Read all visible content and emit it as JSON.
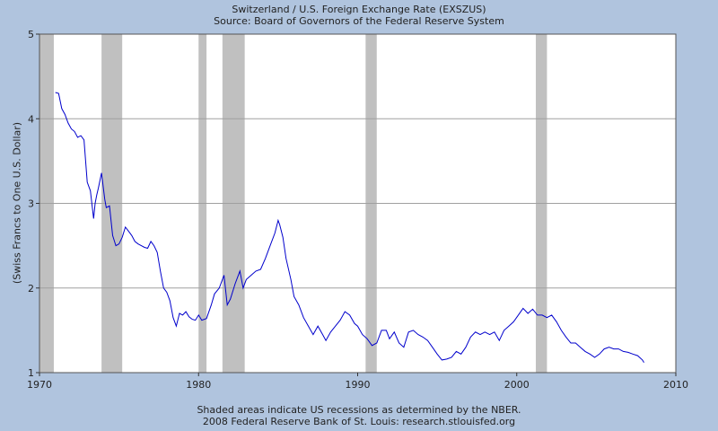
{
  "chart_data": {
    "type": "line",
    "title": "Switzerland / U.S. Foreign Exchange Rate (EXSZUS)",
    "subtitle": "Source: Board of Governors of the Federal Reserve System",
    "xlabel": "",
    "ylabel": "(Swiss Francs to One U.S. Dollar)",
    "xlim": [
      1970,
      2010
    ],
    "ylim": [
      1,
      5
    ],
    "x_ticks": [
      1970,
      1980,
      1990,
      2000,
      2010
    ],
    "y_ticks": [
      1,
      2,
      3,
      4,
      5
    ],
    "grid": "horizontal",
    "line_color": "#0000cc",
    "plot_background": "#ffffff",
    "recession_color": "#c0c0c0",
    "recessions": [
      [
        1969.9,
        1970.9
      ],
      [
        1973.9,
        1975.2
      ],
      [
        1980.0,
        1980.5
      ],
      [
        1981.5,
        1982.9
      ],
      [
        1990.5,
        1991.2
      ],
      [
        2001.2,
        2001.9
      ]
    ],
    "series": [
      {
        "x": [
          1971.0,
          1971.2,
          1971.4,
          1971.6,
          1971.8,
          1972.0,
          1972.2,
          1972.4,
          1972.6,
          1972.8,
          1973.0,
          1973.2,
          1973.4,
          1973.5,
          1973.6,
          1973.7,
          1973.9,
          1974.1,
          1974.2,
          1974.4,
          1974.6,
          1974.8,
          1975.0,
          1975.2,
          1975.4,
          1975.6,
          1975.8,
          1976.0,
          1976.2,
          1976.4,
          1976.6,
          1976.8,
          1977.0,
          1977.2,
          1977.4,
          1977.6,
          1977.8,
          1978.0,
          1978.2,
          1978.4,
          1978.6,
          1978.8,
          1979.0,
          1979.2,
          1979.4,
          1979.6,
          1979.8,
          1980.0,
          1980.2,
          1980.5,
          1980.8,
          1981.0,
          1981.3,
          1981.6,
          1981.8,
          1982.0,
          1982.3,
          1982.6,
          1982.8,
          1983.0,
          1983.3,
          1983.6,
          1983.9,
          1984.2,
          1984.5,
          1984.8,
          1985.0,
          1985.1,
          1985.3,
          1985.5,
          1985.8,
          1986.0,
          1986.3,
          1986.6,
          1986.9,
          1987.2,
          1987.5,
          1987.8,
          1988.0,
          1988.3,
          1988.6,
          1988.9,
          1989.2,
          1989.5,
          1989.8,
          1990.0,
          1990.3,
          1990.6,
          1990.9,
          1991.2,
          1991.5,
          1991.8,
          1992.0,
          1992.3,
          1992.6,
          1992.9,
          1993.2,
          1993.5,
          1993.8,
          1994.1,
          1994.4,
          1994.7,
          1995.0,
          1995.3,
          1995.6,
          1995.9,
          1996.2,
          1996.5,
          1996.8,
          1997.1,
          1997.4,
          1997.7,
          1998.0,
          1998.3,
          1998.6,
          1998.9,
          1999.2,
          1999.5,
          1999.8,
          2000.1,
          2000.4,
          2000.7,
          2001.0,
          2001.3,
          2001.6,
          2001.9,
          2002.2,
          2002.5,
          2002.8,
          2003.1,
          2003.4,
          2003.7,
          2004.0,
          2004.3,
          2004.6,
          2004.9,
          2005.2,
          2005.5,
          2005.8,
          2006.1,
          2006.4,
          2006.7,
          2007.0,
          2007.3,
          2007.6,
          2007.9,
          2008.0
        ],
        "y": [
          4.31,
          4.3,
          4.12,
          4.05,
          3.95,
          3.88,
          3.85,
          3.78,
          3.8,
          3.75,
          3.25,
          3.15,
          2.82,
          3.0,
          3.1,
          3.18,
          3.36,
          3.05,
          2.95,
          2.97,
          2.62,
          2.5,
          2.52,
          2.6,
          2.72,
          2.67,
          2.62,
          2.55,
          2.52,
          2.5,
          2.48,
          2.47,
          2.55,
          2.5,
          2.42,
          2.2,
          2.0,
          1.95,
          1.85,
          1.65,
          1.55,
          1.7,
          1.68,
          1.72,
          1.66,
          1.63,
          1.62,
          1.68,
          1.62,
          1.64,
          1.8,
          1.93,
          2.0,
          2.15,
          1.8,
          1.87,
          2.05,
          2.2,
          2.0,
          2.1,
          2.15,
          2.2,
          2.22,
          2.35,
          2.5,
          2.65,
          2.8,
          2.75,
          2.6,
          2.35,
          2.1,
          1.9,
          1.8,
          1.65,
          1.55,
          1.45,
          1.55,
          1.45,
          1.38,
          1.48,
          1.55,
          1.62,
          1.72,
          1.68,
          1.58,
          1.55,
          1.45,
          1.4,
          1.32,
          1.35,
          1.5,
          1.5,
          1.4,
          1.48,
          1.35,
          1.3,
          1.48,
          1.5,
          1.45,
          1.42,
          1.38,
          1.3,
          1.22,
          1.15,
          1.16,
          1.18,
          1.25,
          1.22,
          1.3,
          1.42,
          1.48,
          1.45,
          1.48,
          1.45,
          1.48,
          1.38,
          1.5,
          1.55,
          1.6,
          1.68,
          1.76,
          1.7,
          1.75,
          1.68,
          1.68,
          1.65,
          1.68,
          1.6,
          1.5,
          1.42,
          1.35,
          1.35,
          1.3,
          1.25,
          1.22,
          1.18,
          1.22,
          1.28,
          1.3,
          1.28,
          1.28,
          1.25,
          1.24,
          1.22,
          1.2,
          1.15,
          1.12
        ]
      }
    ],
    "footer_lines": [
      "Shaded areas indicate US recessions as determined by the NBER.",
      "2008 Federal Reserve Bank of St. Louis: research.stlouisfed.org"
    ]
  }
}
